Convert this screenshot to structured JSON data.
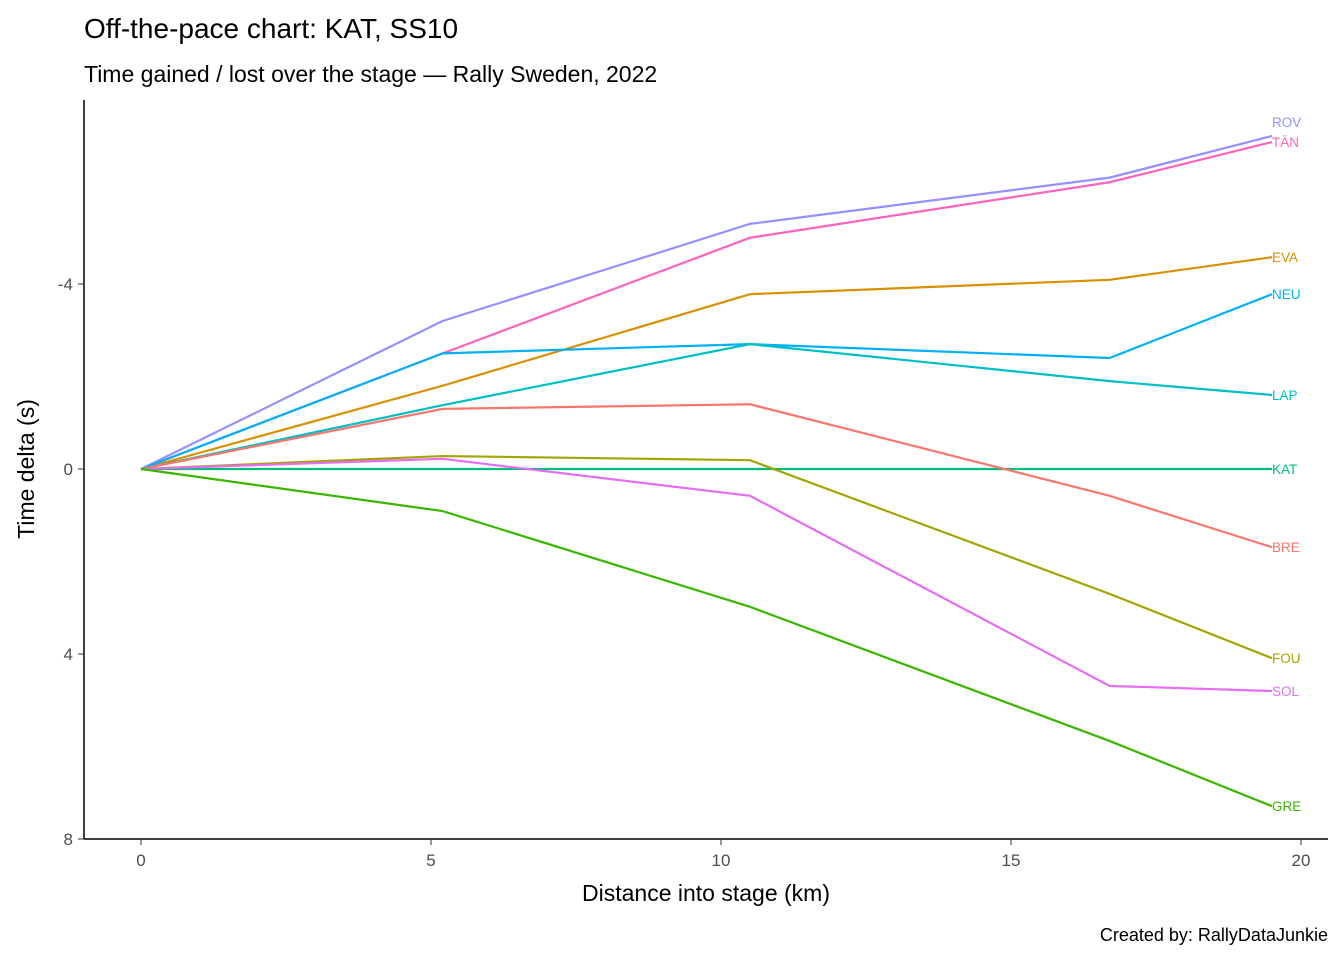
{
  "chart_data": {
    "type": "line",
    "title": "Off-the-pace chart: KAT, SS10",
    "subtitle": "Time gained / lost over the stage — Rally Sweden, 2022",
    "xlabel": "Distance into stage (km)",
    "ylabel": "Time delta (s)",
    "caption": "Created by: RallyDataJunkie",
    "xlim": [
      -1,
      20.5
    ],
    "ylim": [
      -8.1,
      8
    ],
    "y_reversed": true,
    "xticks": [
      0,
      5,
      10,
      15,
      20
    ],
    "yticks": [
      -4,
      0,
      4,
      8
    ],
    "grid": false,
    "x": [
      0,
      5.2,
      10.5,
      16.7,
      19.5
    ],
    "series": [
      {
        "name": "ROV",
        "color": "#9590FF",
        "values": [
          0,
          -3.2,
          -5.3,
          -6.3,
          -7.2
        ]
      },
      {
        "name": "TÄN",
        "color": "#FF62BC",
        "values": [
          0,
          -2.5,
          -5.0,
          -6.2,
          -7.07
        ]
      },
      {
        "name": "EVA",
        "color": "#D89000",
        "values": [
          0,
          -1.8,
          -3.78,
          -4.09,
          -4.58
        ]
      },
      {
        "name": "NEU",
        "color": "#00B0F6",
        "values": [
          0,
          -2.5,
          -2.7,
          -2.4,
          -3.78
        ]
      },
      {
        "name": "LAP",
        "color": "#00BFC4",
        "values": [
          0,
          -1.38,
          -2.7,
          -1.9,
          -1.6
        ]
      },
      {
        "name": "KAT",
        "color": "#00BF7D",
        "values": [
          0,
          0,
          0,
          0,
          0
        ]
      },
      {
        "name": "BRE",
        "color": "#F8766D",
        "values": [
          0,
          -1.3,
          -1.4,
          0.58,
          1.69
        ]
      },
      {
        "name": "FOU",
        "color": "#A3A500",
        "values": [
          0,
          -0.28,
          -0.19,
          2.7,
          4.09
        ]
      },
      {
        "name": "SOL",
        "color": "#E76BF3",
        "values": [
          0,
          -0.22,
          0.58,
          4.69,
          4.8
        ]
      },
      {
        "name": "GRE",
        "color": "#39B600",
        "values": [
          0,
          0.91,
          2.98,
          5.88,
          7.29
        ]
      }
    ]
  }
}
